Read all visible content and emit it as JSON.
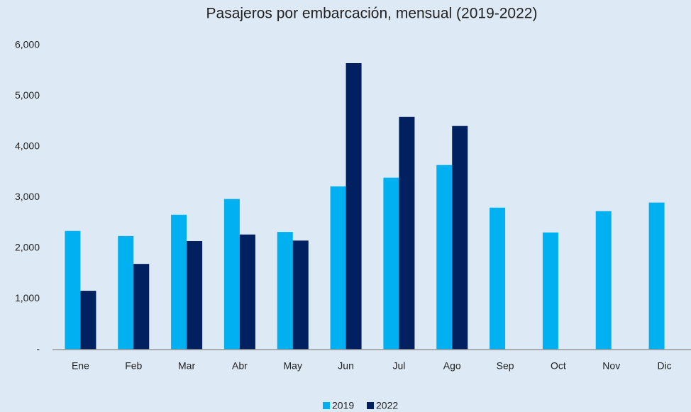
{
  "chart_data": {
    "type": "bar",
    "title": "Pasajeros por embarcación, mensual (2019-2022)",
    "categories": [
      "Ene",
      "Feb",
      "Mar",
      "Abr",
      "May",
      "Jun",
      "Jul",
      "Ago",
      "Sep",
      "Oct",
      "Nov",
      "Dic"
    ],
    "series": [
      {
        "name": "2019",
        "color": "#00b0f0",
        "values": [
          2340,
          2240,
          2660,
          2970,
          2320,
          3220,
          3390,
          3640,
          2800,
          2310,
          2730,
          2900
        ]
      },
      {
        "name": "2022",
        "color": "#002060",
        "values": [
          1160,
          1690,
          2140,
          2270,
          2150,
          5650,
          4590,
          4410,
          null,
          null,
          null,
          null
        ]
      }
    ],
    "ylim": [
      0,
      6000
    ],
    "yticks": [
      {
        "value": 0,
        "label": "-"
      },
      {
        "value": 1000,
        "label": "1,000"
      },
      {
        "value": 2000,
        "label": "2,000"
      },
      {
        "value": 3000,
        "label": "3,000"
      },
      {
        "value": 4000,
        "label": "4,000"
      },
      {
        "value": 5000,
        "label": "5,000"
      },
      {
        "value": 6000,
        "label": "6,000"
      }
    ],
    "grid": false,
    "legend": "bottom"
  }
}
